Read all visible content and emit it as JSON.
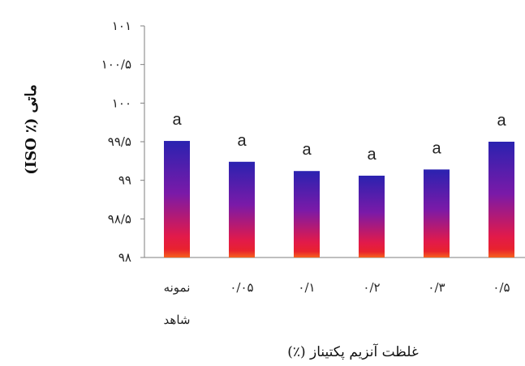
{
  "chart_data": {
    "type": "bar",
    "categories": [
      "نمونه شاهد",
      "۰/۰۵",
      "۰/۱",
      "۰/۲",
      "۰/۳",
      "۰/۵"
    ],
    "values": [
      99.51,
      99.24,
      99.12,
      99.06,
      99.14,
      99.5
    ],
    "significance_letters": [
      "a",
      "a",
      "a",
      "a",
      "a",
      "a"
    ],
    "xlabel": "غلظت آنزیم پکتیناز (٪)",
    "ylabel": "ماتی (٪ ISO)",
    "ylim": [
      98,
      101
    ],
    "y_ticks": [
      98,
      98.5,
      99,
      99.5,
      100,
      100.5,
      101
    ],
    "y_tick_labels": [
      "۹۸",
      "۹۸/۵",
      "۹۹",
      "۹۹/۵",
      "۱۰۰",
      "۱۰۰/۵",
      "۱۰۱"
    ],
    "grid": false,
    "legend": "none",
    "bar_gradient": [
      "#2a22b0",
      "#7a1aa8",
      "#e21a4a",
      "#f5621e"
    ]
  }
}
